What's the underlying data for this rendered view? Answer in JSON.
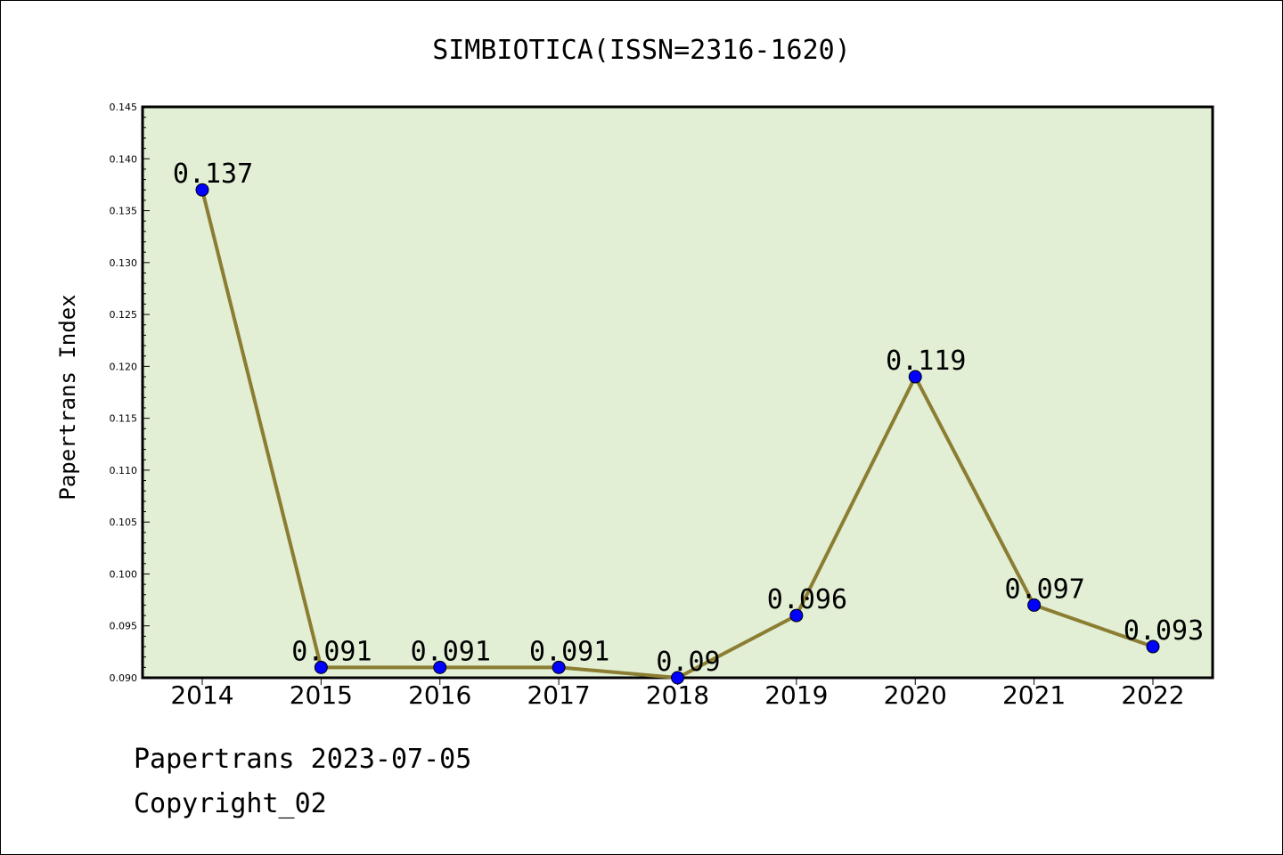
{
  "chart_data": {
    "type": "line",
    "title": "SIMBIOTICA(ISSN=2316-1620)",
    "xlabel": "",
    "ylabel": "Papertrans Index",
    "categories": [
      "2014",
      "2015",
      "2016",
      "2017",
      "2018",
      "2019",
      "2020",
      "2021",
      "2022"
    ],
    "series": [
      {
        "values": [
          0.137,
          0.091,
          0.091,
          0.091,
          0.09,
          0.096,
          0.119,
          0.097,
          0.093
        ],
        "data_labels": [
          "0.137",
          "0.091",
          "0.091",
          "0.091",
          "0.09",
          "0.096",
          "0.119",
          "0.097",
          "0.093"
        ]
      }
    ],
    "ylim": [
      0.09,
      0.145
    ],
    "yticks": [
      "0.090",
      "0.095",
      "0.100",
      "0.105",
      "0.110",
      "0.115",
      "0.120",
      "0.125",
      "0.130",
      "0.135",
      "0.140",
      "0.145"
    ],
    "grid": false,
    "colors": {
      "plot_background": "#e2efd5",
      "line": "#8b7d32",
      "marker": "#0000ff"
    }
  },
  "footer": {
    "line1": "Papertrans 2023-07-05",
    "line2": "Copyright_02"
  }
}
